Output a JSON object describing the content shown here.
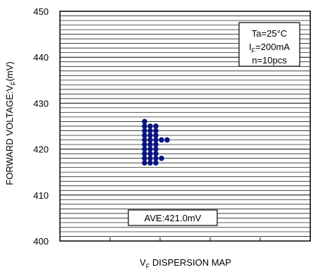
{
  "chart_data": {
    "type": "scatter",
    "title": "",
    "xlabel": "V",
    "xlabel_sub": "F",
    "xlabel_rest": " DISPERSION MAP",
    "ylabel": "FORWARD VOLTAGE:V",
    "ylabel_sub": "F",
    "ylabel_rest": "(mV)",
    "ylim": [
      400,
      450
    ],
    "yticks": [
      "400",
      "410",
      "420",
      "430",
      "440",
      "450"
    ],
    "grid_minor_step": 1,
    "grid_major_step": 10,
    "x_categories": 5,
    "marker_color": "#0b1580",
    "columns": [
      {
        "values": [
          426,
          425,
          424,
          423,
          422,
          421,
          420,
          419,
          418,
          417
        ]
      },
      {
        "values": [
          425,
          424,
          423,
          422,
          421,
          420,
          419,
          418,
          417
        ]
      },
      {
        "values": [
          425,
          424,
          423,
          422,
          421,
          420,
          419,
          418,
          417
        ]
      },
      {
        "values": [
          422,
          418
        ]
      },
      {
        "values": [
          422
        ]
      }
    ],
    "conditions": {
      "line1_main": "Ta=25",
      "line1_unit": "°C",
      "line2_main": "I",
      "line2_sub": "F",
      "line2_rest": "=200mA",
      "line3": "n=10pcs"
    },
    "average_label": "AVE:421.0mV"
  }
}
